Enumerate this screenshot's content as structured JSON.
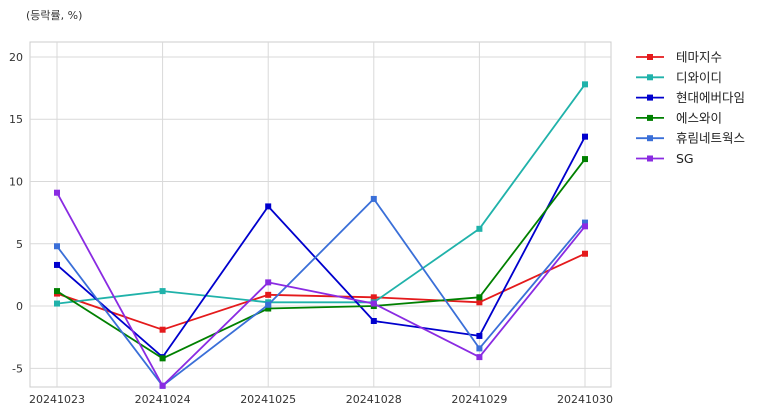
{
  "chart_data": {
    "type": "line",
    "unit_label": "(등락률, %)",
    "title": "",
    "xlabel": "",
    "ylabel": "",
    "x": [
      "20241023",
      "20241024",
      "20241025",
      "20241028",
      "20241029",
      "20241030"
    ],
    "yticks": [
      -5,
      0,
      5,
      10,
      15,
      20
    ],
    "ylim": [
      -6.5,
      21.2
    ],
    "grid": true,
    "legend_position": "outside-top-right",
    "series": [
      {
        "name": "테마지수",
        "color": "#e41a1c",
        "values": [
          1.0,
          -1.9,
          0.9,
          0.7,
          0.3,
          4.2
        ]
      },
      {
        "name": "디와이디",
        "color": "#20b2aa",
        "values": [
          0.2,
          1.2,
          0.3,
          0.3,
          6.2,
          17.8
        ]
      },
      {
        "name": "현대에버다임",
        "color": "#0000cd",
        "values": [
          3.3,
          -4.1,
          8.0,
          -1.2,
          -2.4,
          13.6
        ]
      },
      {
        "name": "에스와이",
        "color": "#008000",
        "values": [
          1.2,
          -4.2,
          -0.2,
          0.0,
          0.7,
          11.8
        ]
      },
      {
        "name": "휴림네트웍스",
        "color": "#3a6fd8",
        "values": [
          4.8,
          -6.4,
          0.1,
          8.6,
          -3.4,
          6.7
        ]
      },
      {
        "name": "SG",
        "color": "#8a2be2",
        "values": [
          9.1,
          -6.4,
          1.9,
          0.2,
          -4.1,
          6.4
        ]
      }
    ]
  }
}
